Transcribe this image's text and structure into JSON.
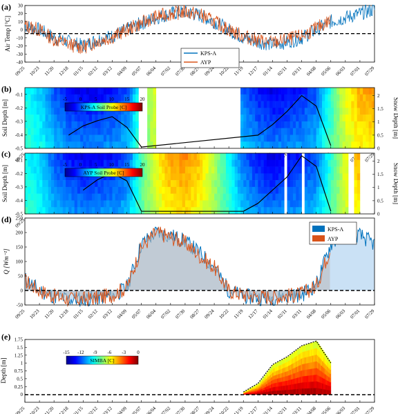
{
  "date_ticks": [
    "09/25",
    "10/23",
    "11/20",
    "12/18",
    "01/15",
    "02/12",
    "03/12",
    "04/09",
    "05/07",
    "06/04",
    "07/02",
    "07/30",
    "08/27",
    "09/24",
    "10/22",
    "11/19",
    "12/17",
    "01/14",
    "02/11",
    "03/11",
    "04/08",
    "05/06",
    "06/03",
    "07/01",
    "07/29"
  ],
  "colors": {
    "kps": "#0072bd",
    "ayp": "#d95319",
    "zero_line": "#000000"
  },
  "chart_data": [
    {
      "type": "line",
      "panel": "(a)",
      "ylabel": "Air Temp [°C]",
      "ylim": [
        -40,
        30
      ],
      "yticks": [
        -40,
        -30,
        -20,
        -10,
        0,
        10,
        20,
        30
      ],
      "x": [
        "09/25",
        "10/23",
        "11/20",
        "12/18",
        "01/15",
        "02/12",
        "03/12",
        "04/09",
        "05/07",
        "06/04",
        "07/02",
        "07/30",
        "08/27",
        "09/24",
        "10/22",
        "11/19",
        "12/17",
        "01/14",
        "02/11",
        "03/11",
        "04/08",
        "05/06",
        "06/03",
        "07/01",
        "07/29"
      ],
      "reference_line": 0,
      "series": [
        {
          "name": "KPS-A",
          "values": [
            5,
            0,
            -10,
            -15,
            -20,
            -12,
            -8,
            0,
            8,
            15,
            20,
            22,
            18,
            10,
            0,
            -10,
            -15,
            -18,
            -15,
            -10,
            0,
            10,
            15,
            20,
            25
          ]
        },
        {
          "name": "AYP",
          "values": [
            5,
            0,
            -12,
            -18,
            -22,
            -14,
            -9,
            0,
            8,
            16,
            20,
            22,
            19,
            10,
            0,
            -8,
            -13,
            -16,
            -12,
            -8,
            2,
            12,
            null,
            null,
            null
          ]
        }
      ]
    },
    {
      "type": "heatmap",
      "panel": "(b)",
      "ylabel": "Soil Depth [m]",
      "y2label": "Snow Depth [m]",
      "ylim": [
        -0.5,
        -0.05
      ],
      "yticks": [
        -0.5,
        -0.4,
        -0.3,
        -0.2,
        -0.1
      ],
      "y2ticks": [
        0,
        0.5,
        1,
        1.5,
        2
      ],
      "colorbar": {
        "label": "KPS-A Soil Probe [C]",
        "ticks": [
          -5,
          0,
          5,
          10,
          15,
          20
        ]
      },
      "snow_depth_m": {
        "x": [
          "12/18",
          "01/15",
          "02/12",
          "03/12",
          "04/09",
          "05/07",
          "12/17",
          "01/14",
          "02/11",
          "03/11",
          "04/08",
          "05/06"
        ],
        "values": [
          0.5,
          0.85,
          1.05,
          1.2,
          0.8,
          0.05,
          0.5,
          0.9,
          1.4,
          2.0,
          1.6,
          0.1
        ]
      }
    },
    {
      "type": "heatmap",
      "panel": "(c)",
      "ylabel": "Soil Depth [m]",
      "y2label": "Snow Depth [m]",
      "ylim": [
        -0.5,
        -0.05
      ],
      "yticks": [
        -0.5,
        -0.4,
        -0.3,
        -0.2,
        -0.1
      ],
      "y2ticks": [
        0,
        0.5,
        1,
        1.5,
        2
      ],
      "colorbar": {
        "label": "AYP Soil Probe [C]",
        "ticks": [
          -5,
          0,
          5,
          10,
          15,
          20
        ]
      },
      "snow_depth_m": {
        "x": [
          "01/15",
          "02/12",
          "03/12",
          "04/09",
          "05/07",
          "11/19",
          "12/17",
          "01/14",
          "02/11",
          "03/11",
          "04/08",
          "05/06"
        ],
        "values": [
          0.9,
          1.3,
          1.55,
          1.25,
          0.1,
          0.1,
          0.4,
          0.9,
          1.4,
          2.2,
          1.8,
          0.1
        ]
      }
    },
    {
      "type": "area",
      "panel": "(d)",
      "ylabel": "Q [Wm⁻²]",
      "ylim": [
        -50,
        250
      ],
      "yticks": [
        -50,
        0,
        50,
        100,
        150,
        200,
        250
      ],
      "x": [
        "09/25",
        "10/23",
        "11/20",
        "12/18",
        "01/15",
        "02/12",
        "03/12",
        "04/09",
        "05/07",
        "06/04",
        "07/02",
        "07/30",
        "08/27",
        "09/24",
        "10/22",
        "11/19",
        "12/17",
        "01/14",
        "02/11",
        "03/11",
        "04/08",
        "05/06",
        "06/03",
        "07/01",
        "07/29"
      ],
      "reference_line": 0,
      "series": [
        {
          "name": "KPS-A",
          "values": [
            40,
            0,
            -20,
            -30,
            -30,
            -25,
            -20,
            10,
            160,
            200,
            190,
            170,
            130,
            80,
            0,
            -20,
            -25,
            -25,
            -20,
            -15,
            20,
            160,
            200,
            190,
            160
          ]
        },
        {
          "name": "AYP",
          "values": [
            35,
            0,
            -20,
            -30,
            -30,
            -25,
            -15,
            10,
            150,
            200,
            185,
            165,
            120,
            80,
            0,
            -15,
            -20,
            -22,
            -18,
            -12,
            15,
            150,
            null,
            null,
            null
          ]
        }
      ]
    },
    {
      "type": "heatmap",
      "panel": "(e)",
      "ylabel": "Depth [m]",
      "ylim": [
        -0.25,
        1.75
      ],
      "yticks": [
        0,
        0.25,
        0.5,
        0.75,
        1,
        1.25,
        1.5,
        1.75
      ],
      "colorbar": {
        "label": "SIMBA [C]",
        "ticks": [
          -15,
          -12,
          -9,
          -6,
          -3,
          0
        ]
      },
      "snow_top_m": {
        "x": [
          "11/19",
          "12/17",
          "01/14",
          "02/11",
          "03/11",
          "04/08",
          "05/06"
        ],
        "values": [
          0.08,
          0.35,
          0.95,
          1.2,
          1.55,
          1.7,
          1.0
        ]
      },
      "reference_line": 0
    }
  ]
}
